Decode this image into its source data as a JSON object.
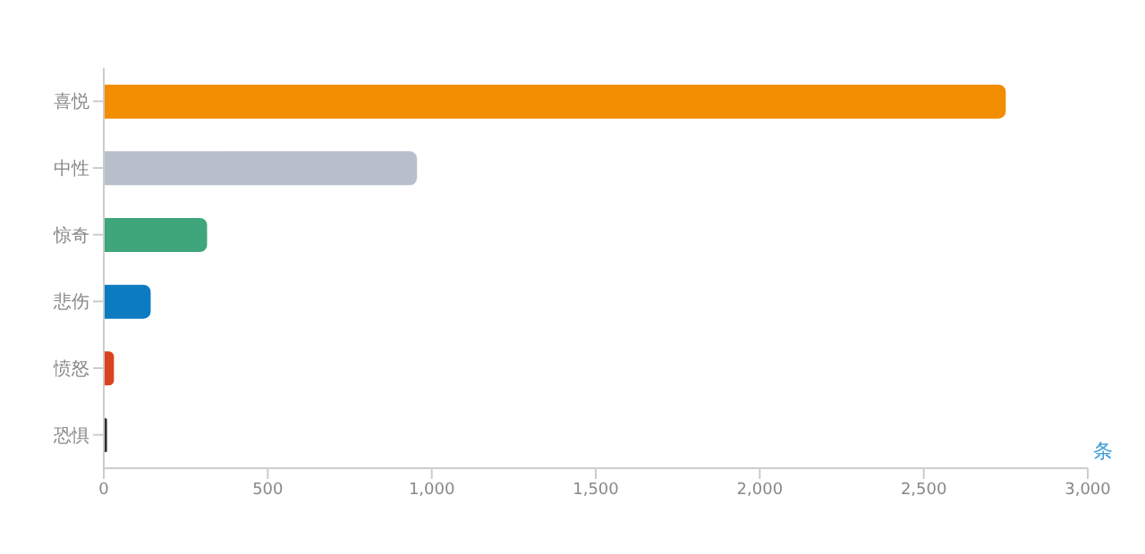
{
  "chart_data": {
    "type": "bar",
    "orientation": "horizontal",
    "xlabel": "条",
    "categories": [
      "喜悦",
      "中性",
      "惊奇",
      "悲伤",
      "愤怒",
      "恐惧"
    ],
    "values": [
      2750,
      955,
      315,
      143,
      31,
      10
    ],
    "colors": [
      "#f28c00",
      "#b7bfcc",
      "#3fa57a",
      "#0c7bc2",
      "#d9441f",
      "#333333"
    ],
    "xlim": [
      0,
      3000
    ],
    "xticks": [
      0,
      {
        "value": 500,
        "label": "500"
      },
      {
        "value": 1000,
        "label": "1,000"
      },
      {
        "value": 1500,
        "label": "1,500"
      },
      {
        "value": 2000,
        "label": "2,000"
      },
      {
        "value": 2500,
        "label": "2,500"
      },
      {
        "value": 3000,
        "label": "3,000"
      }
    ],
    "grid": false,
    "legend": false
  }
}
